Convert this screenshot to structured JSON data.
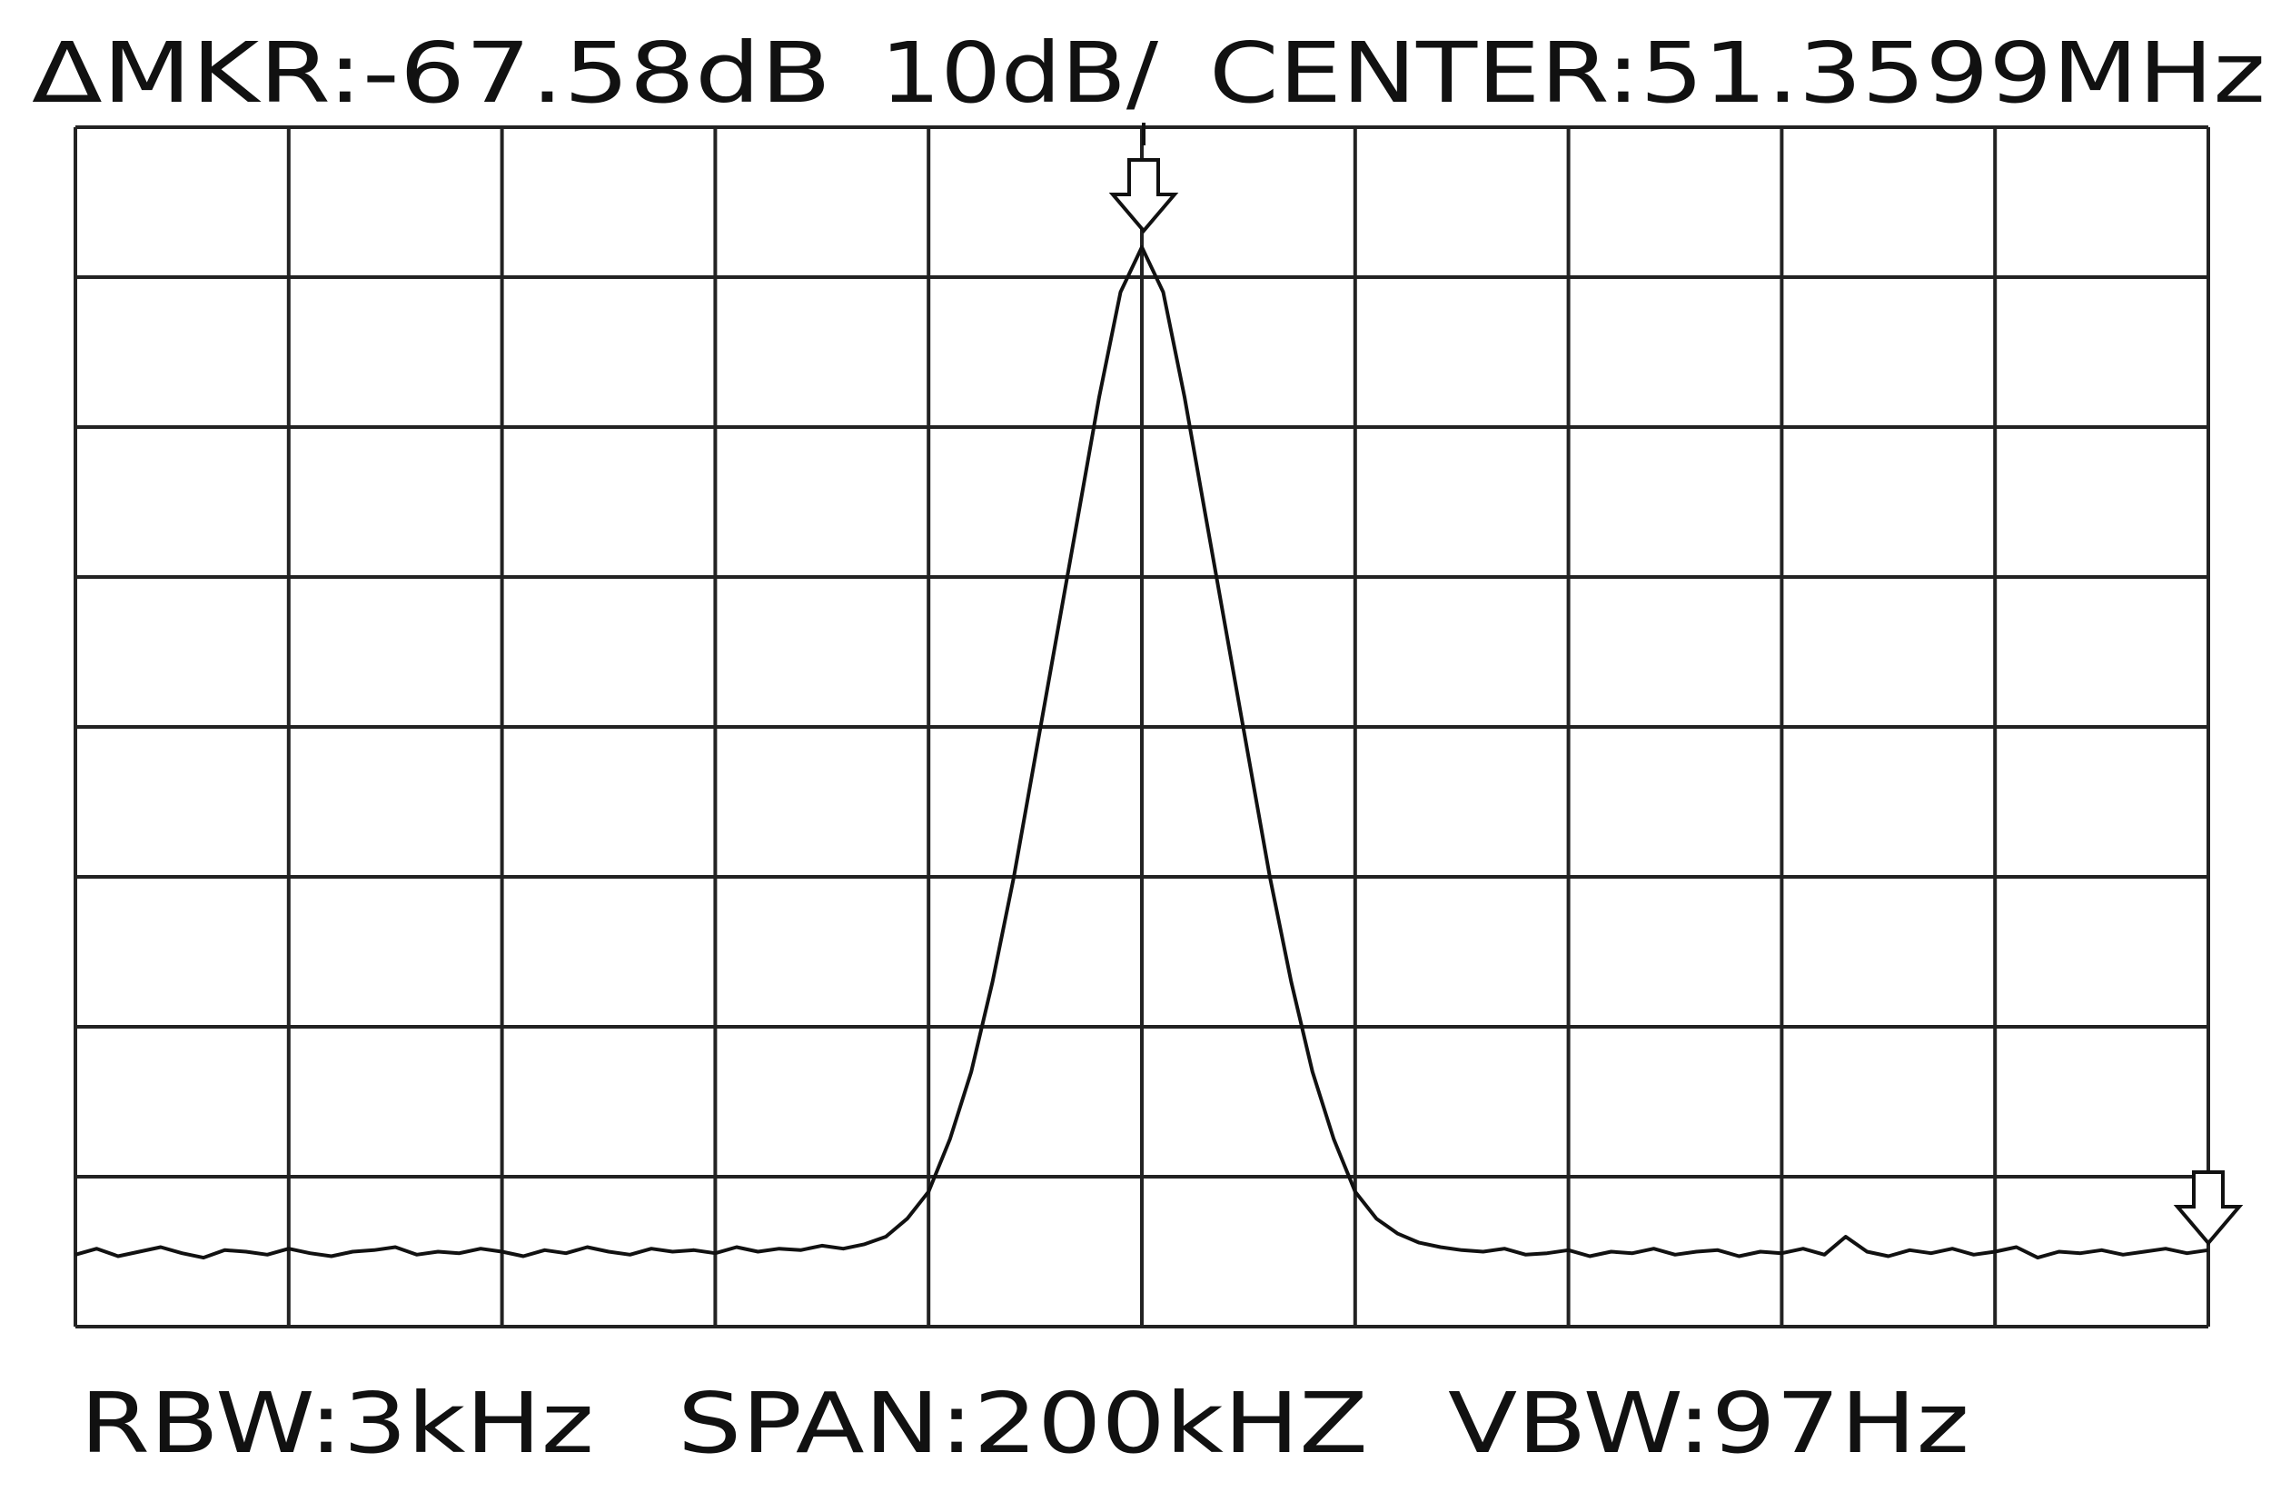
{
  "chart_data": {
    "type": "line",
    "title_parts": [
      "ΔMKR:-67.58dB",
      "10dB/",
      "CENTER:51.3599MHz"
    ],
    "footer_parts": [
      "RBW:3kHz",
      "SPAN:200kHZ",
      "VBW:97Hz"
    ],
    "color": "#111111",
    "grid": true,
    "xlim": [
      0,
      10
    ],
    "ylim": [
      0,
      8
    ],
    "xticks": [
      0,
      1,
      2,
      3,
      4,
      5,
      6,
      7,
      8,
      9,
      10
    ],
    "yticks": [
      0,
      1,
      2,
      3,
      4,
      5,
      6,
      7,
      8
    ],
    "x": [
      0,
      0.1,
      0.2,
      0.3,
      0.4,
      0.5,
      0.6,
      0.7,
      0.8,
      0.9,
      1,
      1.1,
      1.2,
      1.3,
      1.4,
      1.5,
      1.6,
      1.7,
      1.8,
      1.9,
      2,
      2.1,
      2.2,
      2.3,
      2.4,
      2.5,
      2.6,
      2.7,
      2.8,
      2.9,
      3,
      3.1,
      3.2,
      3.3,
      3.4,
      3.5,
      3.6,
      3.7,
      3.8,
      3.9,
      4,
      4.1,
      4.2,
      4.3,
      4.4,
      4.5,
      4.6,
      4.7,
      4.8,
      4.9,
      5,
      5.1,
      5.2,
      5.3,
      5.4,
      5.5,
      5.6,
      5.7,
      5.8,
      5.9,
      6,
      6.1,
      6.2,
      6.3,
      6.4,
      6.5,
      6.6,
      6.7,
      6.8,
      6.9,
      7,
      7.1,
      7.2,
      7.3,
      7.4,
      7.5,
      7.6,
      7.7,
      7.8,
      7.9,
      8,
      8.1,
      8.2,
      8.3,
      8.4,
      8.5,
      8.6,
      8.7,
      8.8,
      8.9,
      9,
      9.1,
      9.2,
      9.3,
      9.4,
      9.5,
      9.6,
      9.7,
      9.8,
      9.9,
      10
    ],
    "values": [
      0.48,
      0.52,
      0.47,
      0.5,
      0.53,
      0.49,
      0.46,
      0.51,
      0.5,
      0.48,
      0.52,
      0.49,
      0.47,
      0.5,
      0.51,
      0.53,
      0.48,
      0.5,
      0.49,
      0.52,
      0.5,
      0.47,
      0.51,
      0.49,
      0.53,
      0.5,
      0.48,
      0.52,
      0.5,
      0.51,
      0.49,
      0.53,
      0.5,
      0.52,
      0.51,
      0.54,
      0.52,
      0.55,
      0.6,
      0.72,
      0.9,
      1.25,
      1.7,
      2.3,
      3.0,
      3.8,
      4.6,
      5.4,
      6.2,
      6.9,
      7.2,
      6.9,
      6.2,
      5.4,
      4.6,
      3.8,
      3.0,
      2.3,
      1.7,
      1.25,
      0.9,
      0.72,
      0.62,
      0.56,
      0.53,
      0.51,
      0.5,
      0.52,
      0.48,
      0.49,
      0.51,
      0.47,
      0.5,
      0.49,
      0.52,
      0.48,
      0.5,
      0.51,
      0.47,
      0.5,
      0.49,
      0.52,
      0.48,
      0.6,
      0.5,
      0.47,
      0.51,
      0.49,
      0.52,
      0.48,
      0.5,
      0.53,
      0.46,
      0.5,
      0.49,
      0.51,
      0.48,
      0.5,
      0.52,
      0.49,
      0.51
    ]
  }
}
